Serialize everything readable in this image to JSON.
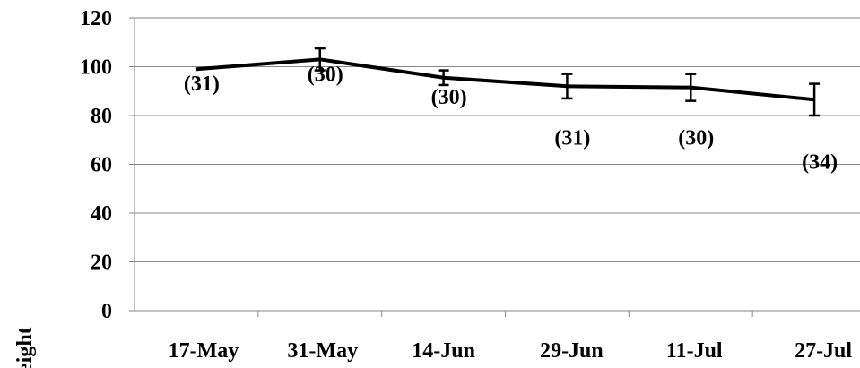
{
  "chart_data": {
    "type": "line",
    "title": "",
    "xlabel": "",
    "ylabel": "eight",
    "categories": [
      "17-May",
      "31-May",
      "14-Jun",
      "29-Jun",
      "11-Jul",
      "27-Jul"
    ],
    "series": [
      {
        "values": [
          99,
          103,
          95.5,
          92,
          91.5,
          86.5
        ],
        "error": [
          0,
          4.5,
          3,
          5,
          5.5,
          6.5
        ],
        "labels": [
          "(31)",
          "(30)",
          "(30)",
          "(31)",
          "(30)",
          "(34)"
        ]
      }
    ],
    "ylim": [
      0,
      120
    ],
    "yticks": [
      "0",
      "20",
      "40",
      "60",
      "80",
      "100",
      "120"
    ],
    "grid": true,
    "legend": "none",
    "line_color": "#000000",
    "grid_color": "#868686"
  }
}
